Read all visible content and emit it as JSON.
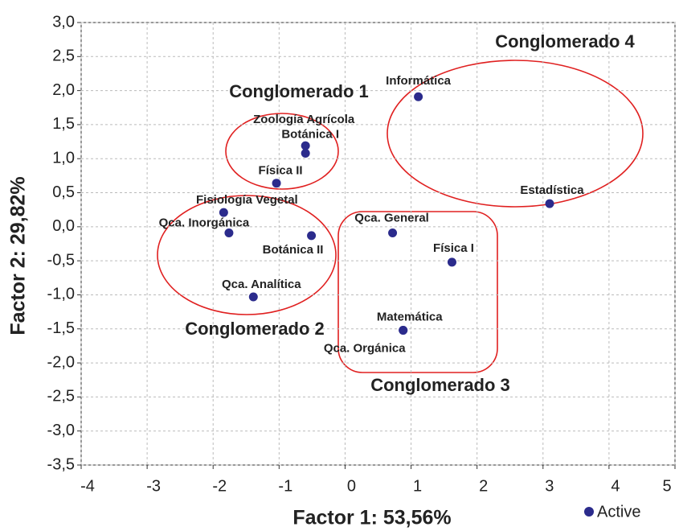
{
  "chart_data": {
    "type": "scatter",
    "xlabel": "Factor 1: 53,56%",
    "ylabel": "Factor 2: 29,82%",
    "xlim": [
      -4,
      5
    ],
    "ylim": [
      -3.5,
      3
    ],
    "xticks": [
      -4,
      -3,
      -2,
      -1,
      0,
      1,
      2,
      3,
      4,
      5
    ],
    "yticks": [
      {
        "value": -3.5,
        "label": "-3,5"
      },
      {
        "value": -3,
        "label": "-3,0"
      },
      {
        "value": -2.5,
        "label": "-2,5"
      },
      {
        "value": -2,
        "label": "-2,0"
      },
      {
        "value": -1.5,
        "label": "-1,5"
      },
      {
        "value": -1,
        "label": "-1,0"
      },
      {
        "value": -0.5,
        "label": "-0,5"
      },
      {
        "value": 0,
        "label": "0,0"
      },
      {
        "value": 0.5,
        "label": "0,5"
      },
      {
        "value": 1,
        "label": "1,0"
      },
      {
        "value": 1.5,
        "label": "1,5"
      },
      {
        "value": 2,
        "label": "2,0"
      },
      {
        "value": 2.5,
        "label": "2,5"
      },
      {
        "value": 3,
        "label": "3,0"
      }
    ],
    "grid": true,
    "legend": "bottom-right",
    "series": [
      {
        "name": "Active",
        "color": "#2b2b8c",
        "labels": [
          "Informática",
          "Zoología Agrícola",
          "Botánica I",
          "Física II",
          "Fisiología Vegetal",
          "Qca. Inorgánica",
          "Botánica II",
          "Qca. Analítica",
          "Qca. General",
          "Física I",
          "Estadística",
          "Matemática",
          "Qca. Orgánica"
        ],
        "x": [
          1.11,
          -0.6,
          -0.6,
          -1.04,
          -1.84,
          -1.76,
          -0.51,
          -1.39,
          0.72,
          1.62,
          3.1,
          0.88,
          0.88
        ],
        "values": [
          1.91,
          1.19,
          1.08,
          0.64,
          0.21,
          -0.09,
          -0.13,
          -1.03,
          -0.09,
          -0.52,
          0.34,
          -1.52,
          -1.52
        ]
      }
    ],
    "annotations": [
      "Conglomerado 1",
      "Conglomerado 2",
      "Conglomerado 3",
      "Conglomerado 4"
    ]
  }
}
